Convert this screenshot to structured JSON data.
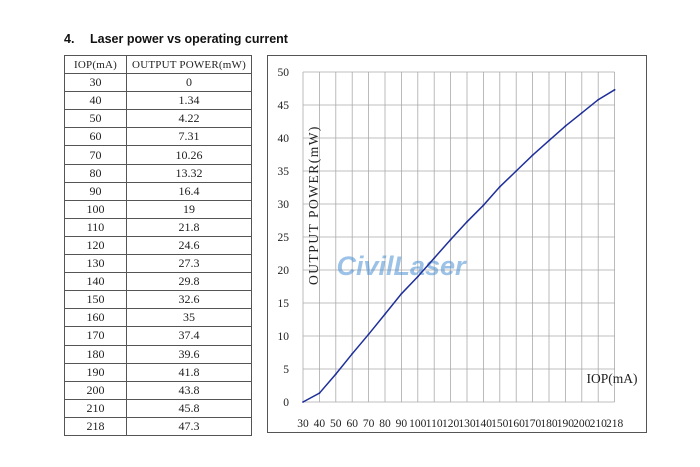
{
  "section": {
    "number": "4.",
    "title": "Laser power vs operating current"
  },
  "table": {
    "headers": [
      "IOP(mA)",
      "OUTPUT POWER(mW)"
    ],
    "rows": [
      [
        "30",
        "0"
      ],
      [
        "40",
        "1.34"
      ],
      [
        "50",
        "4.22"
      ],
      [
        "60",
        "7.31"
      ],
      [
        "70",
        "10.26"
      ],
      [
        "80",
        "13.32"
      ],
      [
        "90",
        "16.4"
      ],
      [
        "100",
        "19"
      ],
      [
        "110",
        "21.8"
      ],
      [
        "120",
        "24.6"
      ],
      [
        "130",
        "27.3"
      ],
      [
        "140",
        "29.8"
      ],
      [
        "150",
        "32.6"
      ],
      [
        "160",
        "35"
      ],
      [
        "170",
        "37.4"
      ],
      [
        "180",
        "39.6"
      ],
      [
        "190",
        "41.8"
      ],
      [
        "200",
        "43.8"
      ],
      [
        "210",
        "45.8"
      ],
      [
        "218",
        "47.3"
      ]
    ]
  },
  "watermark": "CivilLaser",
  "chart_data": {
    "type": "line",
    "xlabel": "IOP(mA)",
    "ylabel": "OUTPUT POWER(mW)",
    "x_ticks": [
      "30",
      "40",
      "50",
      "60",
      "70",
      "80",
      "90",
      "100",
      "110",
      "120",
      "130",
      "140",
      "150",
      "160",
      "170",
      "180",
      "190",
      "200",
      "210",
      "218"
    ],
    "y_ticks": [
      0,
      5,
      10,
      15,
      20,
      25,
      30,
      35,
      40,
      45,
      50
    ],
    "ylim": [
      0,
      50
    ],
    "grid": true,
    "series_color": "#1f2f9a",
    "x": [
      30,
      40,
      50,
      60,
      70,
      80,
      90,
      100,
      110,
      120,
      130,
      140,
      150,
      160,
      170,
      180,
      190,
      200,
      210,
      218
    ],
    "y": [
      0,
      1.34,
      4.22,
      7.31,
      10.26,
      13.32,
      16.4,
      19,
      21.8,
      24.6,
      27.3,
      29.8,
      32.6,
      35,
      37.4,
      39.6,
      41.8,
      43.8,
      45.8,
      47.3
    ]
  }
}
